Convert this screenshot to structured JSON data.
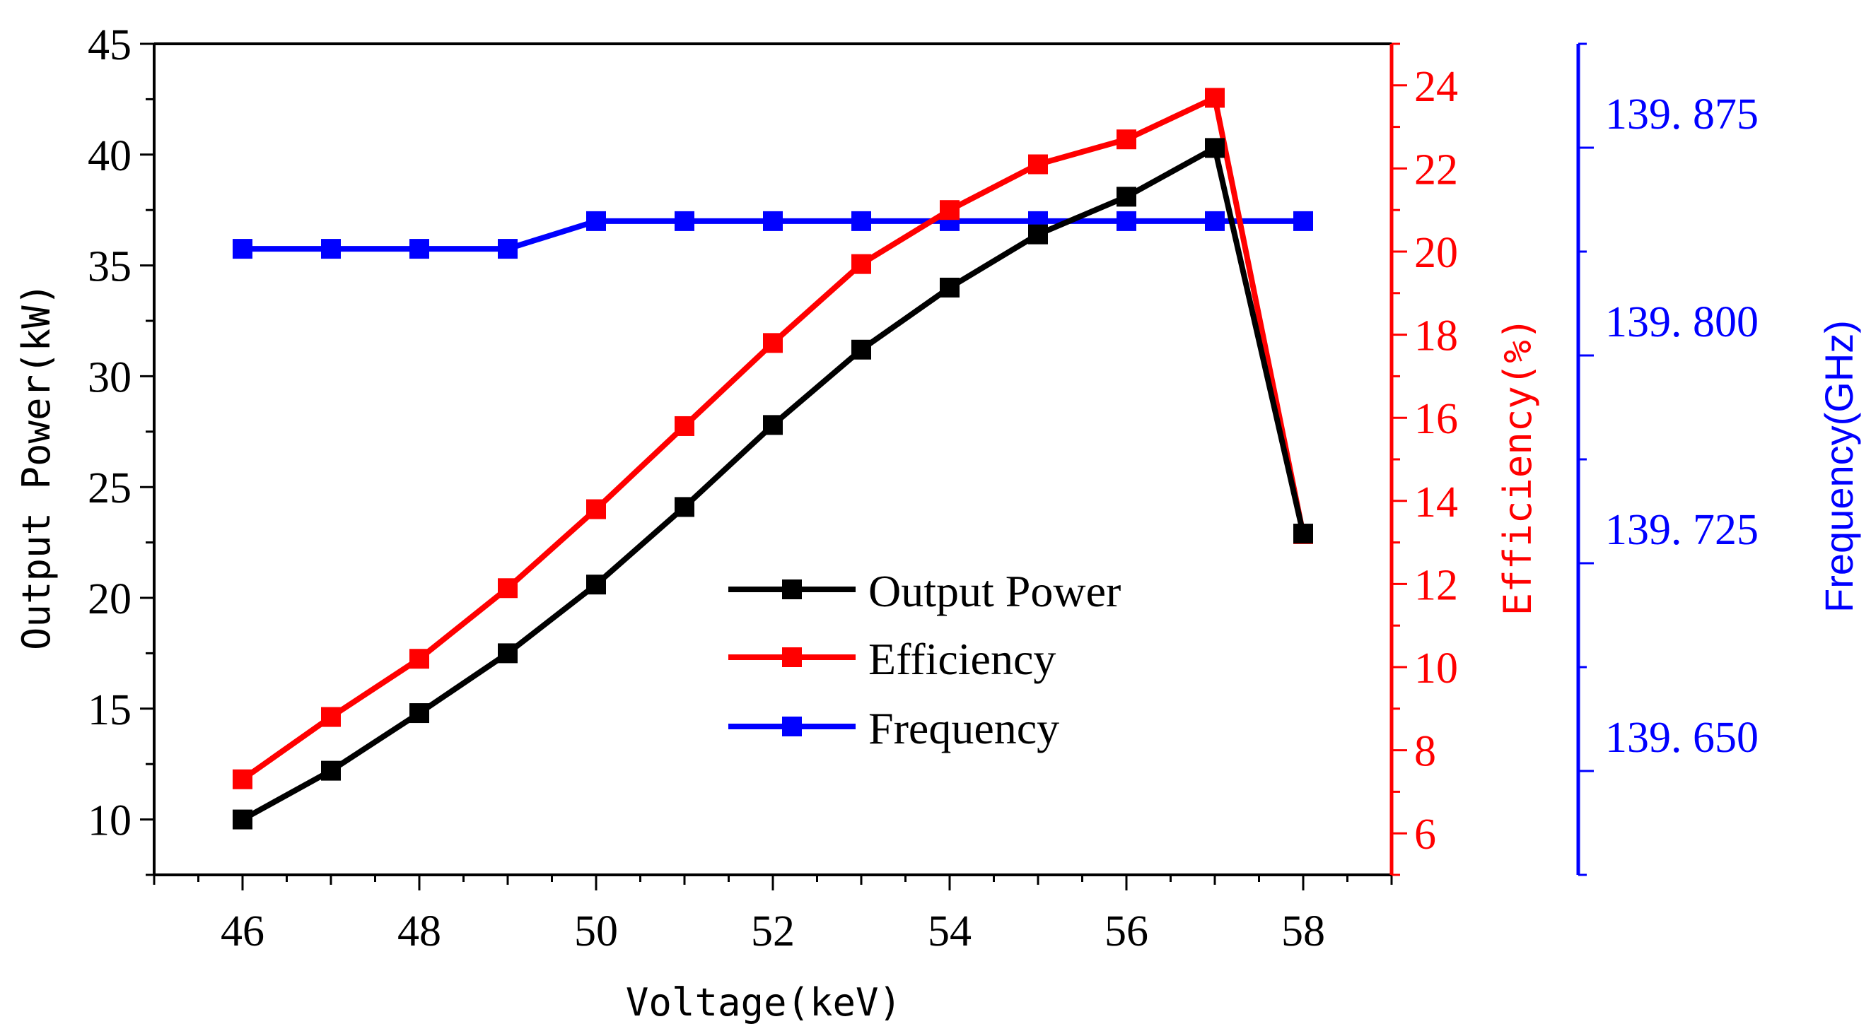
{
  "chart_data": {
    "type": "line",
    "title": "",
    "xlabel": "Voltage(keV)",
    "x": [
      46,
      47,
      48,
      49,
      50,
      51,
      52,
      53,
      54,
      55,
      56,
      57,
      58
    ],
    "xlim": [
      45,
      59
    ],
    "x_ticks": [
      "46",
      "48",
      "50",
      "52",
      "54",
      "56",
      "58"
    ],
    "grid": false,
    "legend_position": "center",
    "axes": {
      "left": {
        "label": "Output Power(kW)",
        "ylim": [
          7.5,
          45
        ],
        "ticks": [
          "10",
          "15",
          "20",
          "25",
          "30",
          "35",
          "40",
          "45"
        ],
        "color": "#000000"
      },
      "right1": {
        "label": "Efficiency(%)",
        "ylim": [
          5,
          25
        ],
        "ticks": [
          "6",
          "8",
          "10",
          "12",
          "14",
          "16",
          "18",
          "20",
          "22",
          "24"
        ],
        "color": "#ff0000"
      },
      "right2": {
        "label": "Frequency(GHz)",
        "ylim": [
          139.6,
          139.9
        ],
        "ticks": [
          "139.650",
          "139.725",
          "139.800",
          "139.875"
        ],
        "tick_display": [
          "139. 650",
          "139. 725",
          "139. 800",
          "139. 875"
        ],
        "color": "#0000ff"
      }
    },
    "series": [
      {
        "name": "Output Power",
        "axis": "left",
        "color": "#000000",
        "values": [
          10.0,
          12.2,
          14.8,
          17.5,
          20.6,
          24.1,
          27.8,
          31.2,
          34.0,
          36.4,
          38.1,
          40.3,
          22.9
        ]
      },
      {
        "name": "Efficiency",
        "axis": "right1",
        "color": "#ff0000",
        "values": [
          7.3,
          8.8,
          10.2,
          11.9,
          13.8,
          15.8,
          17.8,
          19.7,
          21.0,
          22.1,
          22.7,
          23.7,
          13.2
        ]
      },
      {
        "name": "Frequency",
        "axis": "right2",
        "color": "#0000ff",
        "values": [
          139.826,
          139.826,
          139.826,
          139.826,
          139.836,
          139.836,
          139.836,
          139.836,
          139.836,
          139.836,
          139.836,
          139.836,
          139.836
        ]
      }
    ]
  }
}
